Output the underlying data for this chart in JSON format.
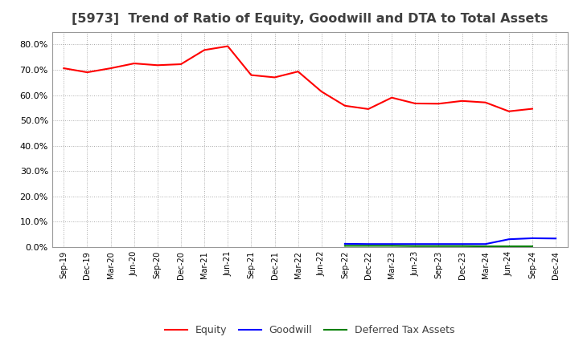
{
  "title": "[5973]  Trend of Ratio of Equity, Goodwill and DTA to Total Assets",
  "x_labels": [
    "Sep-19",
    "Dec-19",
    "Mar-20",
    "Jun-20",
    "Sep-20",
    "Dec-20",
    "Mar-21",
    "Jun-21",
    "Sep-21",
    "Dec-21",
    "Mar-22",
    "Jun-22",
    "Sep-22",
    "Dec-22",
    "Mar-23",
    "Jun-23",
    "Sep-23",
    "Dec-23",
    "Mar-24",
    "Jun-24",
    "Sep-24",
    "Dec-24"
  ],
  "equity": [
    0.706,
    0.69,
    0.706,
    0.725,
    0.718,
    0.722,
    0.778,
    0.793,
    0.679,
    0.67,
    0.693,
    0.614,
    0.558,
    0.545,
    0.59,
    0.567,
    0.566,
    0.577,
    0.571,
    0.536,
    0.546,
    null
  ],
  "goodwill": [
    null,
    null,
    null,
    null,
    null,
    null,
    null,
    null,
    null,
    null,
    null,
    null,
    0.013,
    0.012,
    0.012,
    0.012,
    0.012,
    0.012,
    0.012,
    0.031,
    0.035,
    0.034
  ],
  "dta": [
    null,
    null,
    null,
    null,
    null,
    null,
    null,
    null,
    null,
    null,
    null,
    null,
    0.005,
    0.005,
    0.005,
    0.004,
    0.004,
    0.004,
    0.003,
    0.003,
    0.003,
    null
  ],
  "equity_color": "#FF0000",
  "goodwill_color": "#0000FF",
  "dta_color": "#008000",
  "bg_color": "#FFFFFF",
  "grid_color": "#AAAAAA",
  "title_color": "#404040",
  "ylim": [
    0.0,
    0.85
  ],
  "yticks": [
    0.0,
    0.1,
    0.2,
    0.3,
    0.4,
    0.5,
    0.6,
    0.7,
    0.8
  ],
  "title_fontsize": 11.5,
  "legend_labels": [
    "Equity",
    "Goodwill",
    "Deferred Tax Assets"
  ]
}
